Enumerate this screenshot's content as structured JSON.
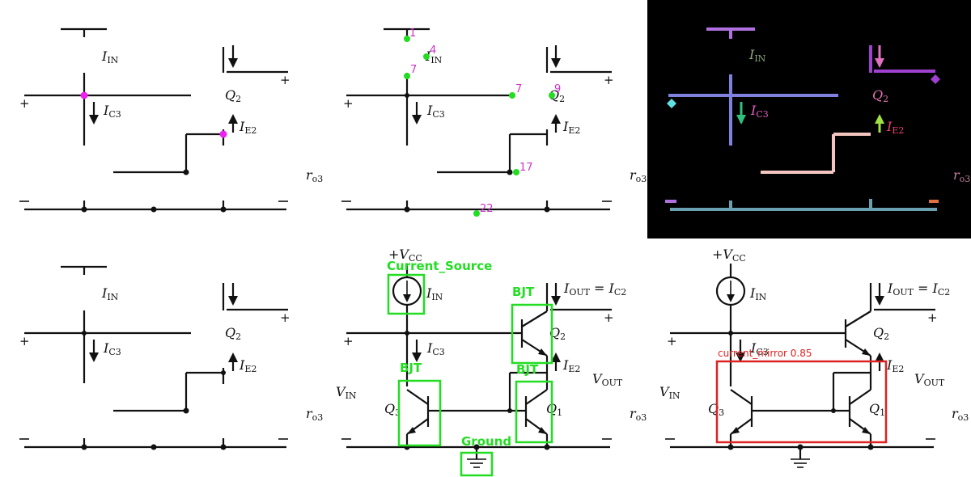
{
  "labels": {
    "i_in_main": "I",
    "i_in_sub": "IN",
    "i_c3_main": "I",
    "i_c3_sub": "C3",
    "i_e2_main": "I",
    "i_e2_sub": "E2",
    "q2_main": "Q",
    "q2_sub": "2",
    "q3_main": "Q",
    "q3_sub": "3",
    "q1_main": "Q",
    "q1_sub": "1",
    "ro3_main": "r",
    "ro3_sub": "o3",
    "vcc": "+V",
    "vcc_sub": "CC",
    "iout_main": "I",
    "iout_sub": "OUT",
    "iout_eq": " = I",
    "iout_eq_sub": "C2",
    "vin_main": "V",
    "vin_sub": "IN",
    "vout_main": "V",
    "vout_sub": "OUT",
    "plus": "+",
    "minus": "−"
  },
  "keypoints": [
    "1",
    "4",
    "7",
    "7",
    "9",
    "17",
    "22"
  ],
  "detections": {
    "current_source": "Current_Source",
    "bjt": "BJT",
    "ground": "Ground",
    "current_mirror": "current_mirror 0.85"
  },
  "colors": {
    "detection_green": "#22dd22",
    "keypoint_green": "#22dd22",
    "junction_magenta": "#ee22ee",
    "mirror_red": "#dd2222",
    "mask_background": "#000000"
  }
}
